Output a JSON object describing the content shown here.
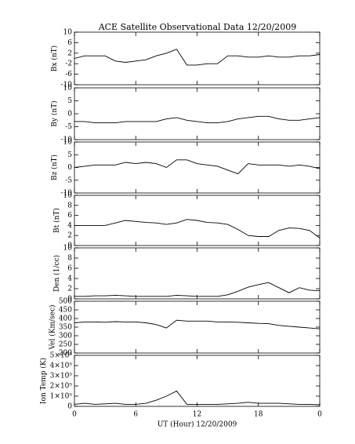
{
  "chart_data": [
    {
      "type": "line",
      "title": "ACE Satellite Observational Data   12/20/2009",
      "y_label": "Bx (nT)",
      "color": "#000000",
      "x": [
        0,
        1,
        2,
        3,
        4,
        5,
        6,
        7,
        8,
        9,
        10,
        11,
        12,
        13,
        14,
        15,
        16,
        17,
        18,
        19,
        20,
        21,
        22,
        23,
        24
      ],
      "values": [
        0,
        1,
        1,
        1,
        -1,
        -1.5,
        -1,
        -0.5,
        1,
        2,
        3.5,
        -2.5,
        -2.5,
        -2,
        -2,
        1,
        1,
        0.5,
        0.5,
        1,
        0.5,
        0.5,
        1,
        1,
        1.5
      ],
      "ylim": [
        -10,
        10
      ],
      "yticks": [
        10,
        6,
        2,
        -2,
        -6,
        -10
      ]
    },
    {
      "type": "line",
      "y_label": "By (nT)",
      "color": "#000000",
      "x": [
        0,
        1,
        2,
        3,
        4,
        5,
        6,
        7,
        8,
        9,
        10,
        11,
        12,
        13,
        14,
        15,
        16,
        17,
        18,
        19,
        20,
        21,
        22,
        23,
        24
      ],
      "values": [
        -3,
        -3,
        -3.5,
        -3.5,
        -3.5,
        -3,
        -3,
        -3,
        -3,
        -2,
        -1.5,
        -2.5,
        -3,
        -3.5,
        -3.5,
        -3,
        -2,
        -1.5,
        -1,
        -1,
        -2,
        -2.5,
        -2.5,
        -2,
        -1.5
      ],
      "ylim": [
        -10,
        10
      ],
      "yticks": [
        10,
        5,
        0,
        -5,
        -10
      ]
    },
    {
      "type": "line",
      "y_label": "Bz (nT)",
      "color": "#000000",
      "x": [
        0,
        1,
        2,
        3,
        4,
        5,
        6,
        7,
        8,
        9,
        10,
        11,
        12,
        13,
        14,
        15,
        16,
        17,
        18,
        19,
        20,
        21,
        22,
        23,
        24
      ],
      "values": [
        0,
        0.5,
        1,
        1,
        1,
        2,
        1.5,
        2,
        1.5,
        0,
        3,
        3,
        1.5,
        1,
        0.5,
        -1,
        -2.5,
        1.5,
        1,
        1,
        1,
        0.5,
        1,
        0.5,
        -0.5
      ],
      "ylim": [
        -10,
        10
      ],
      "yticks": [
        10,
        5,
        0,
        -5,
        -10
      ]
    },
    {
      "type": "line",
      "y_label": "Bt (nT)",
      "color": "#000000",
      "x": [
        0,
        1,
        2,
        3,
        4,
        5,
        6,
        7,
        8,
        9,
        10,
        11,
        12,
        13,
        14,
        15,
        16,
        17,
        18,
        19,
        20,
        21,
        22,
        23,
        24
      ],
      "values": [
        4,
        4,
        4,
        4,
        4.5,
        5,
        4.8,
        4.6,
        4.5,
        4.2,
        4.5,
        5.2,
        5,
        4.6,
        4.5,
        4.2,
        3.2,
        2,
        1.8,
        1.8,
        3,
        3.5,
        3.4,
        3,
        1.5
      ],
      "ylim": [
        0,
        10
      ],
      "yticks": [
        10,
        8,
        6,
        4,
        2,
        0
      ]
    },
    {
      "type": "line",
      "y_label": "Den (1/cc)",
      "color": "#000000",
      "x": [
        0,
        1,
        2,
        3,
        4,
        5,
        6,
        7,
        8,
        9,
        10,
        11,
        12,
        13,
        14,
        15,
        16,
        17,
        18,
        19,
        20,
        21,
        22,
        23,
        24
      ],
      "values": [
        0.5,
        0.5,
        0.6,
        0.6,
        0.7,
        0.6,
        0.5,
        0.5,
        0.5,
        0.5,
        0.7,
        0.6,
        0.5,
        0.5,
        0.5,
        0.8,
        1.5,
        2.3,
        2.8,
        3.2,
        2.2,
        1.2,
        2.2,
        1.7,
        1.6
      ],
      "ylim": [
        0,
        10
      ],
      "yticks": [
        10,
        8,
        6,
        4,
        2,
        0
      ]
    },
    {
      "type": "line",
      "y_label": "Vel (Km/sec)",
      "color": "#000000",
      "x": [
        0,
        1,
        2,
        3,
        4,
        5,
        6,
        7,
        8,
        9,
        10,
        11,
        12,
        13,
        14,
        15,
        16,
        17,
        18,
        19,
        20,
        21,
        22,
        23,
        24
      ],
      "values": [
        375,
        380,
        380,
        378,
        382,
        380,
        380,
        375,
        365,
        345,
        390,
        385,
        385,
        385,
        380,
        380,
        378,
        375,
        372,
        370,
        360,
        355,
        350,
        345,
        340
      ],
      "ylim": [
        200,
        500
      ],
      "yticks": [
        500,
        450,
        400,
        350,
        300,
        250,
        200
      ]
    },
    {
      "type": "line",
      "y_label": "Ion Temp (K)",
      "color": "#000000",
      "x_label": "UT (Hour)  12/20/2009",
      "x": [
        0,
        1,
        2,
        3,
        4,
        5,
        6,
        7,
        8,
        9,
        10,
        11,
        12,
        13,
        14,
        15,
        16,
        17,
        18,
        19,
        20,
        21,
        22,
        23,
        24
      ],
      "values": [
        20000,
        30000,
        20000,
        25000,
        30000,
        20000,
        20000,
        30000,
        60000,
        100000,
        150000,
        20000,
        20000,
        20000,
        20000,
        25000,
        30000,
        40000,
        30000,
        30000,
        30000,
        25000,
        20000,
        20000,
        15000
      ],
      "ylim": [
        0,
        500000
      ],
      "yticks": [
        {
          "value": 500000,
          "label": "5×10⁵"
        },
        {
          "value": 400000,
          "label": "4×10⁵"
        },
        {
          "value": 300000,
          "label": "3×10⁵"
        },
        {
          "value": 200000,
          "label": "2×10⁵"
        },
        {
          "value": 100000,
          "label": "1×10⁵"
        },
        0
      ],
      "xlim": [
        0,
        24
      ],
      "xticks": [
        0,
        6,
        12,
        18,
        {
          "value": 24,
          "label": "0"
        }
      ]
    }
  ]
}
